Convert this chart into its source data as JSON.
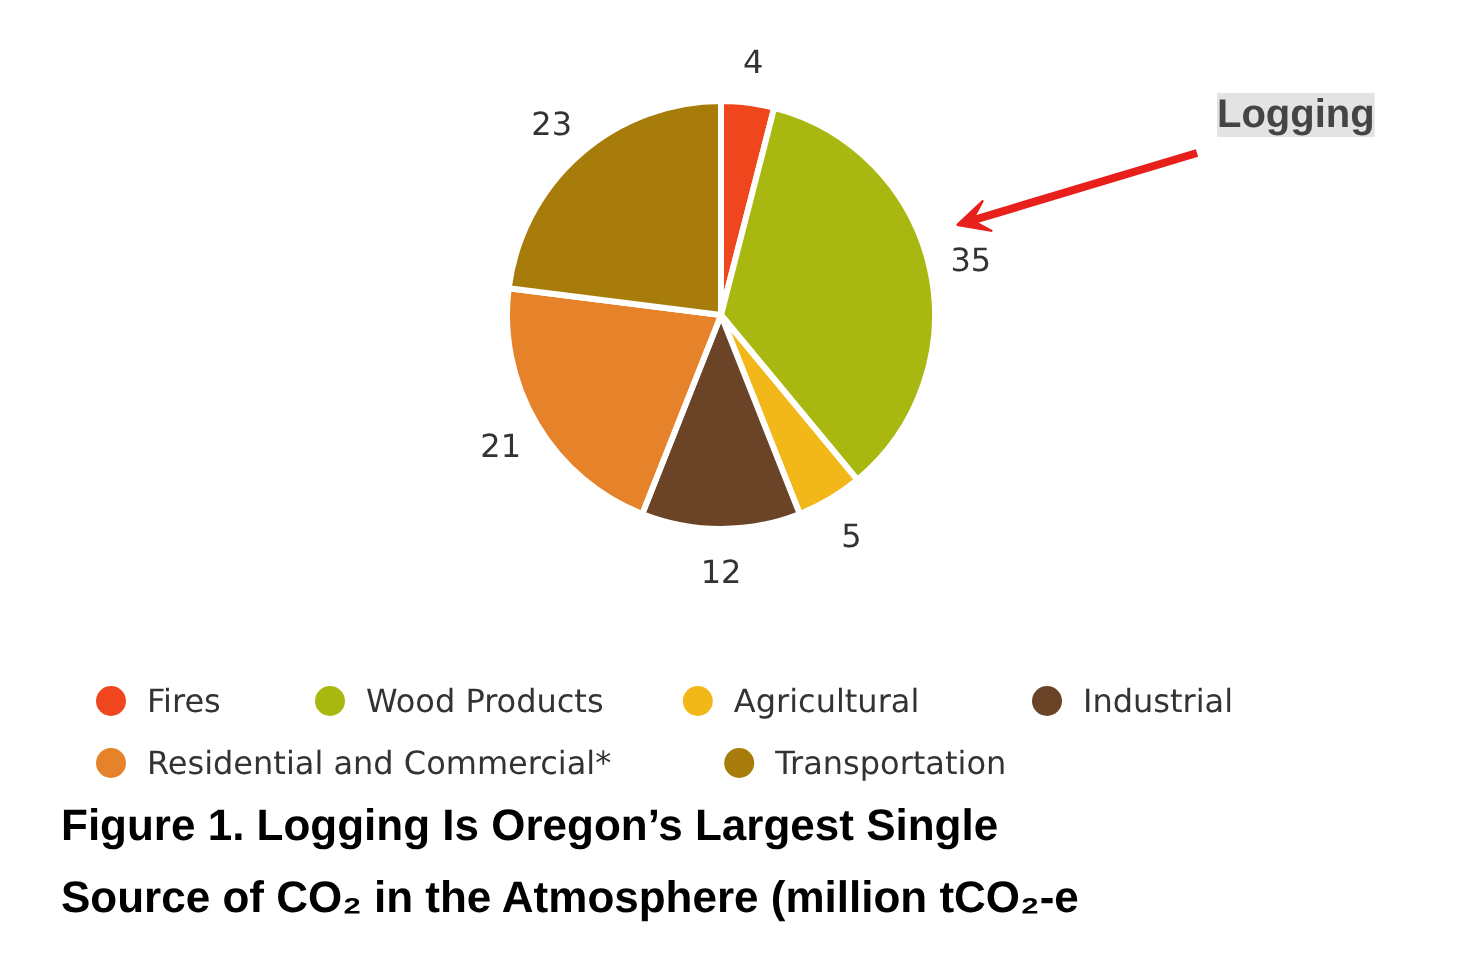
{
  "chart_data": {
    "type": "pie",
    "title": "Figure 1. Logging Is Oregon’s Largest Single Source of CO₂ in the Atmosphere (million tCO₂-e",
    "categories": [
      "Fires",
      "Wood Products",
      "Agricultural",
      "Industrial",
      "Residential and Commercial*",
      "Transportation"
    ],
    "values": [
      4,
      35,
      5,
      12,
      21,
      23
    ],
    "colors": [
      "#f0461e",
      "#a8b810",
      "#f2b81a",
      "#6b4428",
      "#e5822a",
      "#a87c0a"
    ],
    "data_labels": true,
    "legend": "bottom",
    "annotations": [
      "Logging"
    ]
  }
}
